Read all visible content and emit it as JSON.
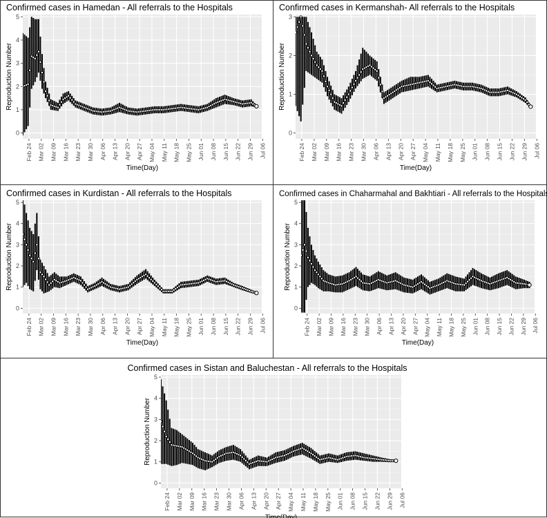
{
  "chart_data": [
    {
      "type": "line",
      "title": "Confirmed cases in Hamedan - All referrals to the Hospitals",
      "xlabel": "Time(Day)",
      "ylabel": "Reproduction Number",
      "ylim": [
        0,
        5
      ],
      "yticks": [
        0,
        1,
        2,
        3,
        4,
        5
      ],
      "xticks": [
        "Feb 24",
        "Mar 02",
        "Mar 09",
        "Mar 16",
        "Mar 23",
        "Mar 30",
        "Apr 06",
        "Apr 13",
        "Apr 20",
        "Apr 27",
        "May 04",
        "May 11",
        "May 18",
        "May 25",
        "Jun 01",
        "Jun 08",
        "Jun 15",
        "Jun 22",
        "Jun 29",
        "Jul 06"
      ],
      "grid": true,
      "day": [
        0,
        3,
        5,
        7,
        9,
        11,
        13,
        16,
        20,
        23,
        26,
        30,
        35,
        40,
        45,
        50,
        55,
        60,
        65,
        70,
        75,
        80,
        85,
        90,
        95,
        100,
        105,
        110,
        115,
        120,
        125,
        130,
        133
      ],
      "estimate": [
        2.0,
        2.1,
        3.3,
        3.2,
        3.5,
        2.6,
        1.8,
        1.2,
        1.1,
        1.45,
        1.6,
        1.25,
        1.1,
        0.95,
        0.9,
        0.95,
        1.1,
        0.95,
        0.9,
        0.95,
        1.0,
        1.0,
        1.05,
        1.1,
        1.05,
        1.0,
        1.1,
        1.3,
        1.45,
        1.35,
        1.25,
        1.3,
        1.15
      ],
      "lower": [
        -0.1,
        0.3,
        1.9,
        2.2,
        2.6,
        1.9,
        1.5,
        1.0,
        0.95,
        1.25,
        1.4,
        1.1,
        0.95,
        0.8,
        0.75,
        0.8,
        0.9,
        0.8,
        0.75,
        0.8,
        0.85,
        0.85,
        0.9,
        0.95,
        0.9,
        0.85,
        0.95,
        1.1,
        1.25,
        1.2,
        1.1,
        1.15,
        1.1
      ],
      "upper": [
        4.3,
        4.1,
        5.0,
        4.9,
        4.9,
        3.4,
        2.2,
        1.45,
        1.3,
        1.7,
        1.8,
        1.4,
        1.25,
        1.1,
        1.05,
        1.1,
        1.3,
        1.1,
        1.05,
        1.1,
        1.15,
        1.15,
        1.2,
        1.25,
        1.2,
        1.15,
        1.25,
        1.5,
        1.65,
        1.5,
        1.4,
        1.45,
        1.2
      ]
    },
    {
      "type": "line",
      "title": "Confirmed cases in Kermanshah- All referrals to the Hospitals",
      "xlabel": "Time(Day)",
      "ylabel": "Reproduction Number",
      "ylim": [
        0,
        3
      ],
      "yticks": [
        0,
        1,
        2,
        3
      ],
      "xticks": [
        "Feb 24",
        "Mar 02",
        "Mar 09",
        "Mar 16",
        "Mar 23",
        "Mar 30",
        "Apr 06",
        "Apr 13",
        "Apr 20",
        "Apr 27",
        "May 04",
        "May 11",
        "May 18",
        "May 25",
        "Jun 01",
        "Jun 08",
        "Jun 15",
        "Jun 22",
        "Jun 29",
        "Jul 06"
      ],
      "grid": true,
      "day": [
        0,
        3,
        6,
        9,
        12,
        15,
        18,
        22,
        26,
        30,
        34,
        38,
        42,
        46,
        50,
        55,
        60,
        65,
        70,
        75,
        80,
        85,
        90,
        95,
        100,
        105,
        110,
        115,
        120,
        125,
        130,
        133
      ],
      "estimate": [
        2.6,
        3.0,
        2.3,
        2.0,
        1.75,
        1.6,
        1.2,
        0.8,
        0.7,
        1.0,
        1.35,
        1.65,
        1.75,
        1.6,
        0.9,
        1.05,
        1.2,
        1.25,
        1.3,
        1.35,
        1.15,
        1.2,
        1.25,
        1.2,
        1.2,
        1.15,
        1.05,
        1.05,
        1.1,
        1.0,
        0.85,
        0.68
      ],
      "lower": [
        0.7,
        0.3,
        1.6,
        1.5,
        1.4,
        1.3,
        0.95,
        0.6,
        0.5,
        0.8,
        1.15,
        1.4,
        1.5,
        1.35,
        0.75,
        0.9,
        1.05,
        1.1,
        1.15,
        1.2,
        1.05,
        1.1,
        1.15,
        1.1,
        1.1,
        1.05,
        0.95,
        0.95,
        1.0,
        0.92,
        0.78,
        0.64
      ],
      "upper": [
        3.0,
        3.0,
        3.0,
        2.6,
        2.1,
        1.9,
        1.45,
        1.0,
        0.9,
        1.2,
        1.6,
        2.2,
        2.0,
        1.85,
        1.05,
        1.2,
        1.35,
        1.45,
        1.45,
        1.5,
        1.25,
        1.3,
        1.35,
        1.3,
        1.3,
        1.25,
        1.15,
        1.15,
        1.2,
        1.08,
        0.92,
        0.72
      ]
    },
    {
      "type": "line",
      "title": "Confirmed cases in Kurdistan - All referrals to the Hospitals",
      "xlabel": "Time(Day)",
      "ylabel": "Reproduction Number",
      "ylim": [
        0,
        5
      ],
      "yticks": [
        0,
        1,
        2,
        3,
        4,
        5
      ],
      "xticks": [
        "Feb 24",
        "Mar 02",
        "Mar 09",
        "Mar 16",
        "Mar 23",
        "Mar 30",
        "Apr 06",
        "Apr 13",
        "Apr 20",
        "Apr 27",
        "May 04",
        "May 11",
        "May 18",
        "May 25",
        "Jun 01",
        "Jun 08",
        "Jun 15",
        "Jun 22",
        "Jun 29",
        "Jul 06"
      ],
      "grid": true,
      "day": [
        0,
        2,
        4,
        6,
        8,
        10,
        12,
        15,
        18,
        21,
        25,
        29,
        33,
        37,
        41,
        45,
        50,
        55,
        60,
        65,
        70,
        75,
        80,
        85,
        90,
        95,
        100,
        105,
        110,
        115,
        120,
        125,
        130,
        133
      ],
      "estimate": [
        3.5,
        3.0,
        2.5,
        2.2,
        3.0,
        1.7,
        1.5,
        1.1,
        1.35,
        1.2,
        1.3,
        1.45,
        1.3,
        0.9,
        1.05,
        1.25,
        1.0,
        0.9,
        1.0,
        1.35,
        1.6,
        1.2,
        0.8,
        0.8,
        1.1,
        1.15,
        1.2,
        1.4,
        1.25,
        1.3,
        1.1,
        0.95,
        0.8,
        0.72
      ],
      "lower": [
        1.0,
        1.2,
        0.9,
        0.8,
        1.8,
        0.9,
        0.7,
        0.8,
        1.0,
        0.95,
        1.1,
        1.25,
        1.1,
        0.75,
        0.9,
        1.05,
        0.85,
        0.75,
        0.85,
        1.15,
        1.4,
        1.05,
        0.7,
        0.7,
        0.95,
        1.0,
        1.05,
        1.25,
        1.1,
        1.15,
        1.0,
        0.85,
        0.72,
        0.66
      ],
      "upper": [
        5.3,
        4.5,
        3.8,
        3.5,
        4.5,
        2.3,
        2.0,
        1.5,
        1.7,
        1.5,
        1.5,
        1.65,
        1.5,
        1.05,
        1.2,
        1.45,
        1.15,
        1.05,
        1.15,
        1.55,
        1.85,
        1.35,
        0.9,
        0.9,
        1.25,
        1.3,
        1.35,
        1.55,
        1.4,
        1.45,
        1.2,
        1.05,
        0.88,
        0.78
      ]
    },
    {
      "type": "line",
      "title": "Confirmed cases in Chaharmahal and Bakhtiari - All referrals to the Hospitals",
      "xlabel": "Time(Day)",
      "ylabel": "Reproduction Number",
      "ylim": [
        0,
        5
      ],
      "yticks": [
        0,
        1,
        2,
        3,
        4,
        5
      ],
      "xticks": [
        "Feb 24",
        "Mar 02",
        "Mar 09",
        "Mar 16",
        "Mar 23",
        "Mar 30",
        "Apr 06",
        "Apr 13",
        "Apr 20",
        "Apr 27",
        "May 04",
        "May 11",
        "May 18",
        "May 25",
        "Jun 01",
        "Jun 08",
        "Jun 15",
        "Jun 22",
        "Jun 29",
        "Jul 06"
      ],
      "grid": true,
      "day": [
        0,
        2,
        4,
        6,
        8,
        10,
        13,
        16,
        20,
        24,
        28,
        32,
        36,
        40,
        45,
        50,
        55,
        60,
        65,
        70,
        75,
        80,
        85,
        90,
        95,
        100,
        105,
        110,
        115,
        120,
        125,
        130,
        133
      ],
      "estimate": [
        2.5,
        3.0,
        2.4,
        2.1,
        1.8,
        1.6,
        1.3,
        1.2,
        1.1,
        1.15,
        1.3,
        1.5,
        1.2,
        1.15,
        1.35,
        1.2,
        1.3,
        1.1,
        1.0,
        1.25,
        0.95,
        1.1,
        1.3,
        1.15,
        1.1,
        1.5,
        1.3,
        1.15,
        1.3,
        1.45,
        1.2,
        1.15,
        1.1
      ],
      "lower": [
        -0.2,
        -0.2,
        1.0,
        1.2,
        1.1,
        0.95,
        0.8,
        0.8,
        0.75,
        0.75,
        0.9,
        1.05,
        0.85,
        0.8,
        0.95,
        0.85,
        0.9,
        0.75,
        0.7,
        0.9,
        0.65,
        0.8,
        0.95,
        0.8,
        0.8,
        1.1,
        0.95,
        0.85,
        0.95,
        1.1,
        0.9,
        0.95,
        0.95
      ],
      "upper": [
        5.3,
        5.3,
        3.8,
        3.0,
        2.5,
        2.2,
        1.8,
        1.6,
        1.5,
        1.55,
        1.7,
        1.95,
        1.6,
        1.5,
        1.75,
        1.55,
        1.7,
        1.45,
        1.35,
        1.6,
        1.25,
        1.4,
        1.65,
        1.5,
        1.4,
        1.9,
        1.65,
        1.45,
        1.65,
        1.8,
        1.5,
        1.35,
        1.25
      ]
    },
    {
      "type": "line",
      "title": "Confirmed cases in Sistan and Baluchestan - All referrals to the Hospitals",
      "xlabel": "Time(Day)",
      "ylabel": "Reproduction Number",
      "ylim": [
        0,
        5
      ],
      "yticks": [
        0,
        1,
        2,
        3,
        4,
        5
      ],
      "xticks": [
        "Feb 24",
        "Mar 02",
        "Mar 09",
        "Mar 16",
        "Mar 23",
        "Mar 30",
        "Apr 06",
        "Apr 13",
        "Apr 20",
        "Apr 27",
        "May 04",
        "May 11",
        "May 18",
        "May 25",
        "Jun 01",
        "Jun 08",
        "Jun 15",
        "Jun 22",
        "Jun 29",
        "Jul 06"
      ],
      "grid": true,
      "day": [
        0,
        3,
        6,
        9,
        12,
        15,
        18,
        21,
        25,
        29,
        33,
        37,
        41,
        45,
        50,
        55,
        60,
        65,
        70,
        75,
        80,
        85,
        90,
        95,
        100,
        105,
        110,
        115,
        120,
        125,
        130,
        133
      ],
      "estimate": [
        2.9,
        2.2,
        1.8,
        1.75,
        1.7,
        1.55,
        1.4,
        1.2,
        1.05,
        1.0,
        1.25,
        1.4,
        1.45,
        1.3,
        0.9,
        1.05,
        1.0,
        1.2,
        1.3,
        1.5,
        1.65,
        1.4,
        1.1,
        1.2,
        1.1,
        1.25,
        1.3,
        1.2,
        1.15,
        1.1,
        1.05,
        1.05
      ],
      "lower": [
        0.9,
        0.9,
        0.8,
        0.85,
        0.95,
        0.9,
        0.85,
        0.7,
        0.6,
        0.75,
        0.95,
        1.05,
        1.1,
        1.0,
        0.65,
        0.8,
        0.8,
        0.95,
        1.05,
        1.25,
        1.35,
        1.15,
        0.9,
        1.0,
        0.95,
        1.05,
        1.1,
        1.05,
        1.0,
        1.0,
        0.98,
        1.0
      ],
      "upper": [
        4.9,
        3.9,
        2.6,
        2.5,
        2.3,
        2.1,
        1.9,
        1.6,
        1.45,
        1.3,
        1.55,
        1.7,
        1.8,
        1.6,
        1.1,
        1.3,
        1.2,
        1.45,
        1.55,
        1.75,
        1.9,
        1.65,
        1.3,
        1.4,
        1.3,
        1.45,
        1.5,
        1.4,
        1.3,
        1.2,
        1.12,
        1.1
      ]
    }
  ],
  "colors": {
    "panel_bg": "#ebebeb",
    "grid_major": "#ffffff",
    "series": "#000000",
    "tick_text": "#4d4d4d"
  }
}
